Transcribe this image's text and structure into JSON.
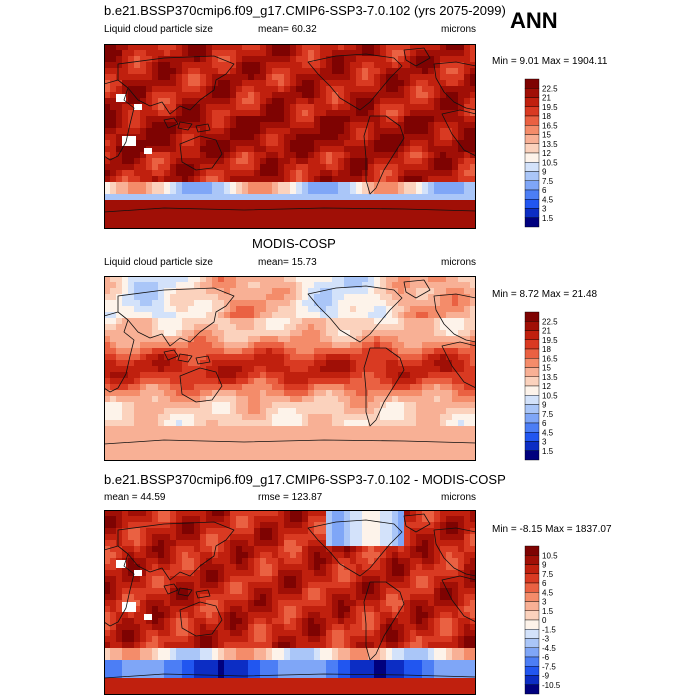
{
  "header": {
    "season": "ANN"
  },
  "colors": {
    "positive_scale": [
      "#00007e",
      "#0c2dc4",
      "#2156f0",
      "#4c7ef5",
      "#7fa6f7",
      "#aac6f8",
      "#d3e2fa",
      "#fdf3ea",
      "#fbd2bd",
      "#f8b095",
      "#f48c6a",
      "#ea6142",
      "#d93a22",
      "#c0200e",
      "#a00f06",
      "#7e0302"
    ],
    "diff_scale": [
      "#00007e",
      "#0c2dc4",
      "#2156f0",
      "#4c7ef5",
      "#7fa6f7",
      "#aac6f8",
      "#d3e2fa",
      "#fdf3ea",
      "#fbd2bd",
      "#f8b095",
      "#f48c6a",
      "#ea6142",
      "#d93a22",
      "#c0200e",
      "#a00f06",
      "#7e0302"
    ],
    "land_line": "#111111"
  },
  "chart_data": [
    {
      "type": "heatmap",
      "title": "b.e21.BSSP370cmip6.f09_g17.CMIP6-SSP3-7.0.102 (yrs 2075-2099)",
      "variable": "Liquid cloud particle size",
      "mean_text": "mean=  60.32",
      "units": "microns",
      "minmax_text": "Min =   9.01 Max = 1904.11",
      "min": 9.01,
      "max": 1904.11,
      "colorbar_levels": [
        "22.5",
        "21",
        "19.5",
        "18",
        "16.5",
        "15",
        "13.5",
        "12",
        "10.5",
        "9",
        "7.5",
        "6",
        "4.5",
        "3",
        "1.5"
      ],
      "pattern": "model"
    },
    {
      "type": "heatmap",
      "title": "MODIS-COSP",
      "variable": "Liquid cloud particle size",
      "mean_text": "mean=  15.73",
      "units": "microns",
      "minmax_text": "Min =   8.72 Max =  21.48",
      "min": 8.72,
      "max": 21.48,
      "colorbar_levels": [
        "22.5",
        "21",
        "19.5",
        "18",
        "16.5",
        "15",
        "13.5",
        "12",
        "10.5",
        "9",
        "7.5",
        "6",
        "4.5",
        "3",
        "1.5"
      ],
      "pattern": "obs"
    },
    {
      "type": "heatmap",
      "title": "b.e21.BSSP370cmip6.f09_g17.CMIP6-SSP3-7.0.102 - MODIS-COSP",
      "variable": "",
      "mean_text": "mean =  44.59",
      "rmse_text": "rmse = 123.87",
      "units": "microns",
      "minmax_text": "Min =  -8.15 Max = 1837.07",
      "min": -8.15,
      "max": 1837.07,
      "colorbar_levels": [
        "10.5",
        "9",
        "7.5",
        "6",
        "4.5",
        "3",
        "1.5",
        "0",
        "-1.5",
        "-3",
        "-4.5",
        "-6",
        "-7.5",
        "-9",
        "-10.5"
      ],
      "pattern": "diff"
    }
  ]
}
